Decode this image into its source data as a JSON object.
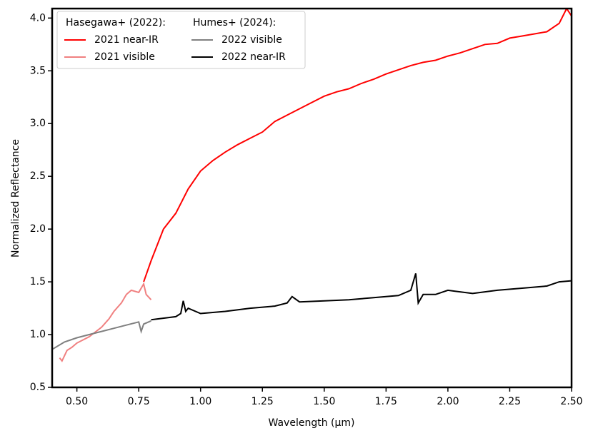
{
  "chart_data": {
    "type": "line",
    "xlabel": "Wavelength (μm)",
    "ylabel": "Normalized Reflectance",
    "xlim": [
      0.4,
      2.5
    ],
    "ylim": [
      0.5,
      4.09
    ],
    "xticks": [
      {
        "value": 0.5,
        "label": "0.50"
      },
      0.75,
      {
        "value": 1.0,
        "label": "1.00"
      },
      1.25,
      {
        "value": 1.5,
        "label": "1.50"
      },
      1.75,
      {
        "value": 2.0,
        "label": "2.00"
      },
      2.25,
      {
        "value": 2.5,
        "label": "2.50"
      }
    ],
    "yticks": [
      0.5,
      {
        "value": 1.0,
        "label": "1.0"
      },
      1.5,
      {
        "value": 2.0,
        "label": "2.0"
      },
      2.5,
      {
        "value": 3.0,
        "label": "3.0"
      },
      3.5,
      {
        "value": 4.0,
        "label": "4.0"
      }
    ],
    "legend_titles": [
      "Hasegawa+ (2022):",
      "Humes+ (2024):"
    ],
    "series": [
      {
        "name": "2021 near-IR",
        "color": "#ff0000",
        "x": [
          0.77,
          0.8,
          0.85,
          0.9,
          0.95,
          1.0,
          1.05,
          1.1,
          1.15,
          1.2,
          1.25,
          1.3,
          1.35,
          1.4,
          1.45,
          1.5,
          1.55,
          1.6,
          1.65,
          1.7,
          1.75,
          1.8,
          1.85,
          1.9,
          1.95,
          2.0,
          2.05,
          2.1,
          2.15,
          2.2,
          2.25,
          2.3,
          2.35,
          2.4,
          2.45,
          2.48,
          2.5
        ],
        "values": [
          1.5,
          1.7,
          2.0,
          2.15,
          2.38,
          2.55,
          2.65,
          2.73,
          2.8,
          2.86,
          2.92,
          3.02,
          3.08,
          3.14,
          3.2,
          3.26,
          3.3,
          3.33,
          3.38,
          3.42,
          3.47,
          3.51,
          3.55,
          3.58,
          3.6,
          3.64,
          3.67,
          3.71,
          3.75,
          3.76,
          3.81,
          3.83,
          3.85,
          3.87,
          3.95,
          4.09,
          4.02
        ]
      },
      {
        "name": "2021 visible",
        "color": "#f08080",
        "x": [
          0.43,
          0.44,
          0.45,
          0.46,
          0.48,
          0.5,
          0.55,
          0.6,
          0.63,
          0.65,
          0.68,
          0.7,
          0.72,
          0.75,
          0.77,
          0.78,
          0.8
        ],
        "values": [
          0.78,
          0.75,
          0.8,
          0.85,
          0.88,
          0.92,
          0.98,
          1.07,
          1.15,
          1.22,
          1.3,
          1.38,
          1.42,
          1.4,
          1.48,
          1.38,
          1.33
        ]
      },
      {
        "name": "2022 visible",
        "color": "#808080",
        "x": [
          0.4,
          0.45,
          0.5,
          0.55,
          0.6,
          0.65,
          0.7,
          0.75,
          0.76,
          0.77,
          0.8
        ],
        "values": [
          0.86,
          0.93,
          0.97,
          1.0,
          1.03,
          1.06,
          1.09,
          1.12,
          1.03,
          1.1,
          1.13
        ]
      },
      {
        "name": "2022 near-IR",
        "color": "#000000",
        "x": [
          0.8,
          0.9,
          0.92,
          0.93,
          0.94,
          0.95,
          1.0,
          1.1,
          1.2,
          1.3,
          1.35,
          1.37,
          1.4,
          1.5,
          1.6,
          1.7,
          1.8,
          1.85,
          1.87,
          1.88,
          1.9,
          1.95,
          2.0,
          2.1,
          2.2,
          2.3,
          2.4,
          2.45,
          2.5
        ],
        "values": [
          1.14,
          1.17,
          1.2,
          1.32,
          1.22,
          1.25,
          1.2,
          1.22,
          1.25,
          1.27,
          1.3,
          1.36,
          1.31,
          1.32,
          1.33,
          1.35,
          1.37,
          1.42,
          1.58,
          1.3,
          1.38,
          1.38,
          1.42,
          1.39,
          1.42,
          1.44,
          1.46,
          1.5,
          1.51
        ]
      }
    ]
  }
}
